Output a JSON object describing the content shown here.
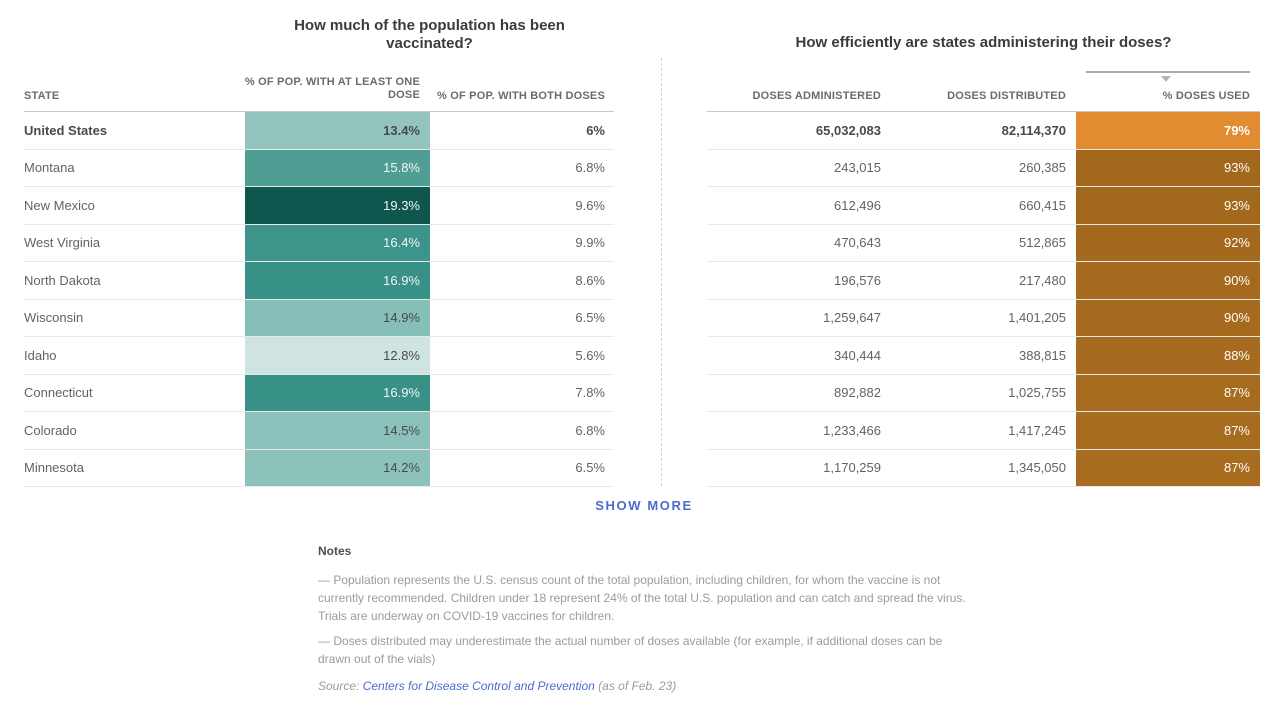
{
  "left_table": {
    "title": "How much of the population has been vaccinated?",
    "columns": {
      "state": "STATE",
      "one_dose": "% OF POP. WITH AT LEAST ONE DOSE",
      "both_doses": "% OF POP. WITH BOTH DOSES"
    }
  },
  "right_table": {
    "title": "How efficiently are states administering their doses?",
    "columns": {
      "administered": "DOSES ADMINISTERED",
      "distributed": "DOSES DISTRIBUTED",
      "used": "% DOSES USED"
    },
    "sort": {
      "column": "% DOSES USED",
      "direction": "desc"
    }
  },
  "rows": [
    {
      "state": "United States",
      "one_dose": "13.4%",
      "both_doses": "6%",
      "administered": "65,032,083",
      "distributed": "82,114,370",
      "used": "79%",
      "one_dose_bg": "#93c5be",
      "one_dose_text": "#4a4a4a",
      "used_bg": "#e18c30",
      "bold": true
    },
    {
      "state": "Montana",
      "one_dose": "15.8%",
      "both_doses": "6.8%",
      "administered": "243,015",
      "distributed": "260,385",
      "used": "93%",
      "one_dose_bg": "#4f9e94",
      "one_dose_text": "#f4f4f4",
      "used_bg": "#a2681c",
      "bold": false
    },
    {
      "state": "New Mexico",
      "one_dose": "19.3%",
      "both_doses": "9.6%",
      "administered": "612,496",
      "distributed": "660,415",
      "used": "93%",
      "one_dose_bg": "#0e564e",
      "one_dose_text": "#f4f4f4",
      "used_bg": "#a2681c",
      "bold": false
    },
    {
      "state": "West Virginia",
      "one_dose": "16.4%",
      "both_doses": "9.9%",
      "administered": "470,643",
      "distributed": "512,865",
      "used": "92%",
      "one_dose_bg": "#3d948b",
      "one_dose_text": "#f4f4f4",
      "used_bg": "#a4691d",
      "bold": false
    },
    {
      "state": "North Dakota",
      "one_dose": "16.9%",
      "both_doses": "8.6%",
      "administered": "196,576",
      "distributed": "217,480",
      "used": "90%",
      "one_dose_bg": "#379187",
      "one_dose_text": "#f4f4f4",
      "used_bg": "#a56a1d",
      "bold": false
    },
    {
      "state": "Wisconsin",
      "one_dose": "14.9%",
      "both_doses": "6.5%",
      "administered": "1,259,647",
      "distributed": "1,401,205",
      "used": "90%",
      "one_dose_bg": "#85bfb8",
      "one_dose_text": "#4a4a4a",
      "used_bg": "#a56a1d",
      "bold": false
    },
    {
      "state": "Idaho",
      "one_dose": "12.8%",
      "both_doses": "5.6%",
      "administered": "340,444",
      "distributed": "388,815",
      "used": "88%",
      "one_dose_bg": "#cfe3e0",
      "one_dose_text": "#4a4a4a",
      "used_bg": "#a66b1e",
      "bold": false
    },
    {
      "state": "Connecticut",
      "one_dose": "16.9%",
      "both_doses": "7.8%",
      "administered": "892,882",
      "distributed": "1,025,755",
      "used": "87%",
      "one_dose_bg": "#379187",
      "one_dose_text": "#f4f4f4",
      "used_bg": "#a76c1e",
      "bold": false
    },
    {
      "state": "Colorado",
      "one_dose": "14.5%",
      "both_doses": "6.8%",
      "administered": "1,233,466",
      "distributed": "1,417,245",
      "used": "87%",
      "one_dose_bg": "#8ac1ba",
      "one_dose_text": "#4a4a4a",
      "used_bg": "#a76c1e",
      "bold": false
    },
    {
      "state": "Minnesota",
      "one_dose": "14.2%",
      "both_doses": "6.5%",
      "administered": "1,170,259",
      "distributed": "1,345,050",
      "used": "87%",
      "one_dose_bg": "#8dc2bb",
      "one_dose_text": "#4a4a4a",
      "used_bg": "#a76c1e",
      "bold": false
    }
  ],
  "show_more_label": "SHOW MORE",
  "notes": {
    "heading": "Notes",
    "items": [
      "— Population represents the U.S. census count of the total population, including children, for whom the vaccine is not currently recommended. Children under 18 represent 24% of the total U.S. population and can catch and spread the virus. Trials are underway on COVID-19 vaccines for children.",
      "— Doses distributed may underestimate the actual number of doses available (for example, if additional doses can be drawn out of the vials)"
    ]
  },
  "source": {
    "prefix": "Source: ",
    "link": "Centers for Disease Control and Prevention",
    "suffix": " (as of Feb. 23)"
  },
  "colors": {
    "accent_blue": "#4a6bd2",
    "teal_scale_min": "#cfe3e0",
    "teal_scale_max": "#0e564e",
    "orange_light": "#e18c30",
    "orange_dark": "#a2681c"
  },
  "chart_data": {
    "type": "table",
    "title": "How much of the population has been vaccinated? / How efficiently are states administering their doses?",
    "columns": [
      "State",
      "% of pop. with at least one dose",
      "% of pop. with both doses",
      "Doses administered",
      "Doses distributed",
      "% doses used"
    ],
    "rows": [
      [
        "United States",
        13.4,
        6,
        65032083,
        82114370,
        79
      ],
      [
        "Montana",
        15.8,
        6.8,
        243015,
        260385,
        93
      ],
      [
        "New Mexico",
        19.3,
        9.6,
        612496,
        660415,
        93
      ],
      [
        "West Virginia",
        16.4,
        9.9,
        470643,
        512865,
        92
      ],
      [
        "North Dakota",
        16.9,
        8.6,
        196576,
        217480,
        90
      ],
      [
        "Wisconsin",
        14.9,
        6.5,
        1259647,
        1401205,
        90
      ],
      [
        "Idaho",
        12.8,
        5.6,
        340444,
        388815,
        88
      ],
      [
        "Connecticut",
        16.9,
        7.8,
        892882,
        1025755,
        87
      ],
      [
        "Colorado",
        14.5,
        6.8,
        1233466,
        1417245,
        87
      ],
      [
        "Minnesota",
        14.2,
        6.5,
        1170259,
        1345050,
        87
      ]
    ],
    "sort": {
      "column": "% doses used",
      "direction": "desc"
    },
    "color_encoding": {
      "% of pop. with at least one dose": "sequential teal scale (light=low, dark=high)",
      "% doses used": "orange scale (light=low, dark=high)"
    }
  }
}
